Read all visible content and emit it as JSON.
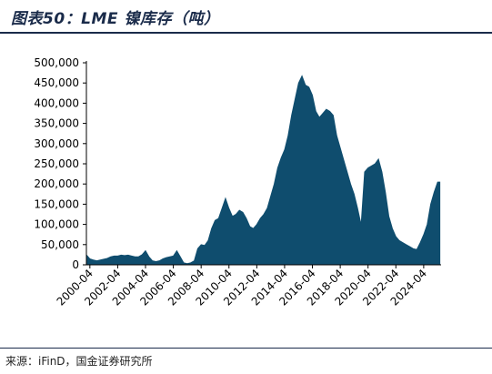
{
  "header": {
    "title": "图表50：LME 镍库存（吨）"
  },
  "footer": {
    "source": "来源：iFinD，国金证券研究所"
  },
  "colors": {
    "area": "#0f4d6e",
    "rule": "#1a2b4a"
  },
  "chart_data": {
    "type": "area",
    "title": "图表50：LME 镍库存（吨）",
    "xlabel": "",
    "ylabel": "",
    "ylim": [
      0,
      500000
    ],
    "yticks": [
      0,
      50000,
      100000,
      150000,
      200000,
      250000,
      300000,
      350000,
      400000,
      450000,
      500000
    ],
    "ytick_labels": [
      "0",
      "50,000",
      "100,000",
      "150,000",
      "200,000",
      "250,000",
      "300,000",
      "350,000",
      "400,000",
      "450,000",
      "500,000"
    ],
    "xlim": [
      "2000-04",
      "2025-06"
    ],
    "xtick_labels": [
      "2000-04",
      "2002-04",
      "2004-04",
      "2006-04",
      "2008-04",
      "2010-04",
      "2012-04",
      "2014-04",
      "2016-04",
      "2018-04",
      "2020-04",
      "2022-04",
      "2024-04"
    ],
    "grid": false,
    "series": [
      {
        "x": [
          "2000-01",
          "2000-04",
          "2000-07",
          "2000-10",
          "2001-01",
          "2001-04",
          "2001-07",
          "2001-10",
          "2002-01",
          "2002-04",
          "2002-07",
          "2002-10",
          "2003-01",
          "2003-04",
          "2003-07",
          "2003-10",
          "2004-01",
          "2004-04",
          "2004-07",
          "2004-10",
          "2005-01",
          "2005-04",
          "2005-07",
          "2005-10",
          "2006-01",
          "2006-04",
          "2006-07",
          "2006-10",
          "2007-01",
          "2007-04",
          "2007-07",
          "2007-10",
          "2008-01",
          "2008-04",
          "2008-07",
          "2008-10",
          "2009-01",
          "2009-04",
          "2009-07",
          "2009-10",
          "2010-01",
          "2010-04",
          "2010-07",
          "2010-10",
          "2011-01",
          "2011-04",
          "2011-07",
          "2011-10",
          "2012-01",
          "2012-04",
          "2012-07",
          "2012-10",
          "2013-01",
          "2013-04",
          "2013-07",
          "2013-10",
          "2014-01",
          "2014-04",
          "2014-07",
          "2014-10",
          "2015-01",
          "2015-04",
          "2015-07",
          "2015-10",
          "2016-01",
          "2016-04",
          "2016-07",
          "2016-10",
          "2017-01",
          "2017-04",
          "2017-07",
          "2017-10",
          "2018-01",
          "2018-04",
          "2018-07",
          "2018-10",
          "2019-01",
          "2019-04",
          "2019-07",
          "2019-10",
          "2020-01",
          "2020-04",
          "2020-07",
          "2020-10",
          "2021-01",
          "2021-04",
          "2021-07",
          "2021-10",
          "2022-01",
          "2022-04",
          "2022-07",
          "2022-10",
          "2023-01",
          "2023-04",
          "2023-07",
          "2023-10",
          "2024-01",
          "2024-04",
          "2024-07",
          "2024-10",
          "2025-01",
          "2025-04",
          "2025-06"
        ],
        "values": [
          25000,
          15000,
          12000,
          10000,
          12000,
          14000,
          16000,
          20000,
          22000,
          22000,
          24000,
          23000,
          24000,
          22000,
          20000,
          20000,
          25000,
          35000,
          20000,
          10000,
          8000,
          10000,
          15000,
          18000,
          20000,
          22000,
          35000,
          20000,
          5000,
          3000,
          5000,
          10000,
          40000,
          50000,
          48000,
          60000,
          90000,
          110000,
          115000,
          140000,
          165000,
          140000,
          120000,
          125000,
          135000,
          130000,
          115000,
          95000,
          90000,
          100000,
          115000,
          125000,
          140000,
          170000,
          200000,
          240000,
          265000,
          285000,
          320000,
          370000,
          410000,
          450000,
          468000,
          445000,
          440000,
          420000,
          380000,
          365000,
          375000,
          385000,
          380000,
          370000,
          320000,
          290000,
          260000,
          230000,
          200000,
          175000,
          140000,
          100000,
          230000,
          240000,
          245000,
          250000,
          262000,
          230000,
          180000,
          120000,
          90000,
          70000,
          60000,
          55000,
          50000,
          45000,
          40000,
          38000,
          55000,
          75000,
          100000,
          150000,
          180000,
          205000,
          205000
        ]
      }
    ]
  }
}
